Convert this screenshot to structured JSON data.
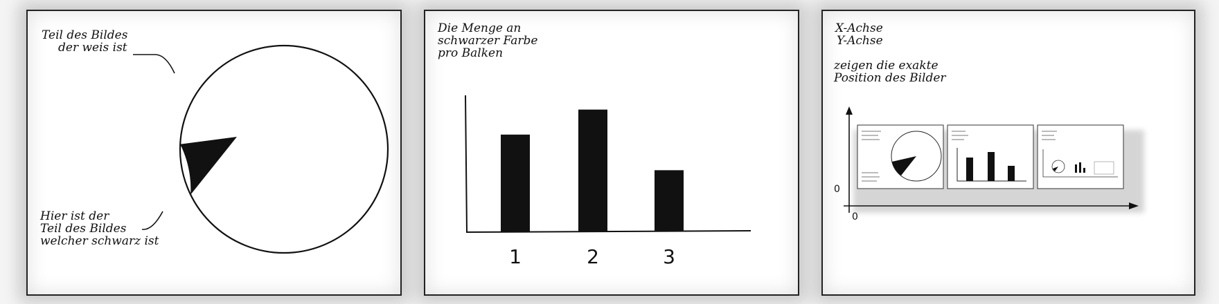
{
  "panel1": {
    "white_label": [
      "Teil des Bildes",
      "der weis ist"
    ],
    "black_label": [
      "Hier ist der",
      "Teil des Bildes",
      "welcher schwarz ist"
    ],
    "pie": {
      "black_fraction": 0.08
    }
  },
  "panel2": {
    "title": [
      "Die Menge an",
      "schwarzer Farbe",
      "pro Balken"
    ],
    "chart_data": {
      "type": "bar",
      "categories": [
        "1",
        "2",
        "3"
      ],
      "values": [
        155,
        195,
        98
      ],
      "ylim": [
        0,
        220
      ]
    }
  },
  "panel3": {
    "axis_text": [
      "X-Achse",
      "Y-Achse"
    ],
    "caption": [
      "zeigen die exakte",
      "Position des Bilder"
    ],
    "origin_x": "0",
    "origin_y": "0"
  },
  "colors": {
    "ink": "#111111",
    "panel": "#ffffff",
    "background": "#f4f4f4"
  }
}
